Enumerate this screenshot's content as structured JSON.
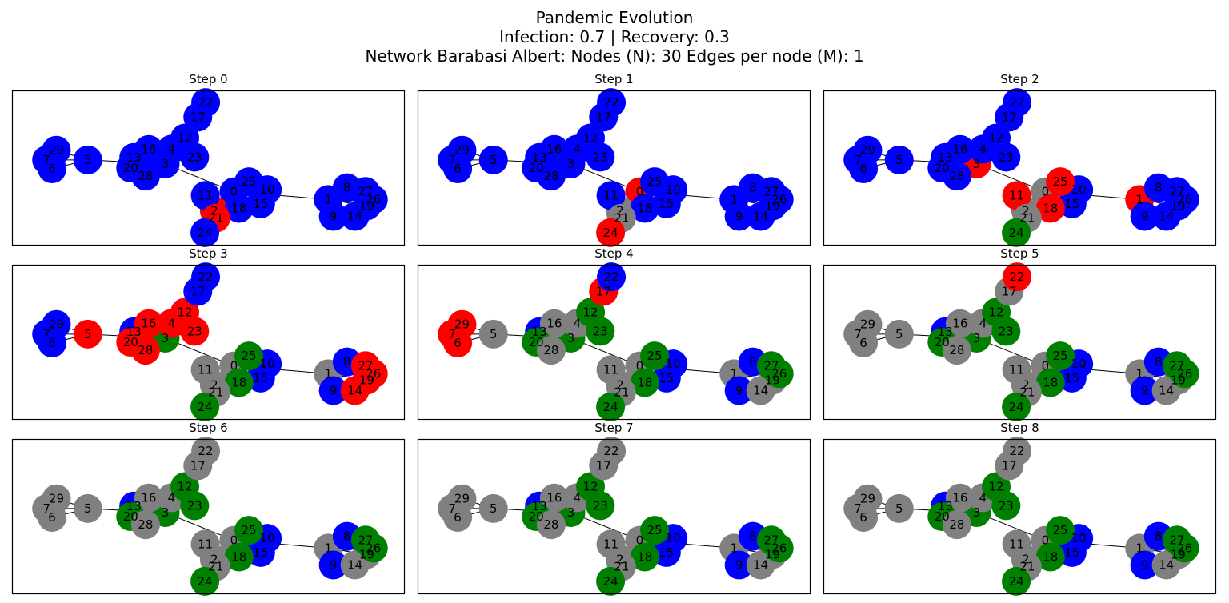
{
  "title_lines": [
    "Pandemic Evolution",
    "Infection: 0.7 | Recovery: 0.3",
    "Network Barabasi Albert: Nodes (N): 30 Edges per node (M): 1"
  ],
  "colors": {
    "susceptible": "#0000ff",
    "infected": "#ff0000",
    "recovered": "#808080",
    "vaccinated": "#008000",
    "edge": "#000000",
    "frame": "#000000"
  },
  "chart_data": {
    "type": "network",
    "nodes": [
      {
        "id": "0",
        "x": 0.565,
        "y": 0.653
      },
      {
        "id": "1",
        "x": 0.805,
        "y": 0.703
      },
      {
        "id": "2",
        "x": 0.515,
        "y": 0.775
      },
      {
        "id": "3",
        "x": 0.39,
        "y": 0.474
      },
      {
        "id": "4",
        "x": 0.406,
        "y": 0.378
      },
      {
        "id": "5",
        "x": 0.193,
        "y": 0.448
      },
      {
        "id": "6",
        "x": 0.102,
        "y": 0.505
      },
      {
        "id": "7",
        "x": 0.088,
        "y": 0.448
      },
      {
        "id": "8",
        "x": 0.853,
        "y": 0.627
      },
      {
        "id": "9",
        "x": 0.818,
        "y": 0.812
      },
      {
        "id": "10",
        "x": 0.65,
        "y": 0.64
      },
      {
        "id": "11",
        "x": 0.492,
        "y": 0.677
      },
      {
        "id": "12",
        "x": 0.44,
        "y": 0.307
      },
      {
        "id": "13",
        "x": 0.31,
        "y": 0.432
      },
      {
        "id": "14",
        "x": 0.873,
        "y": 0.812
      },
      {
        "id": "15",
        "x": 0.633,
        "y": 0.731
      },
      {
        "id": "16",
        "x": 0.348,
        "y": 0.38
      },
      {
        "id": "17",
        "x": 0.473,
        "y": 0.172
      },
      {
        "id": "18",
        "x": 0.578,
        "y": 0.76
      },
      {
        "id": "19",
        "x": 0.903,
        "y": 0.745
      },
      {
        "id": "20",
        "x": 0.302,
        "y": 0.5
      },
      {
        "id": "21",
        "x": 0.519,
        "y": 0.823
      },
      {
        "id": "22",
        "x": 0.493,
        "y": 0.078
      },
      {
        "id": "23",
        "x": 0.465,
        "y": 0.43
      },
      {
        "id": "24",
        "x": 0.491,
        "y": 0.917
      },
      {
        "id": "25",
        "x": 0.603,
        "y": 0.588
      },
      {
        "id": "26",
        "x": 0.92,
        "y": 0.703
      },
      {
        "id": "27",
        "x": 0.9,
        "y": 0.651
      },
      {
        "id": "28",
        "x": 0.34,
        "y": 0.552
      },
      {
        "id": "29",
        "x": 0.113,
        "y": 0.385
      }
    ],
    "edges": [
      [
        "0",
        "1"
      ],
      [
        "0",
        "2"
      ],
      [
        "0",
        "3"
      ],
      [
        "0",
        "10"
      ],
      [
        "0",
        "11"
      ],
      [
        "0",
        "15"
      ],
      [
        "0",
        "18"
      ],
      [
        "0",
        "25"
      ],
      [
        "1",
        "8"
      ],
      [
        "1",
        "9"
      ],
      [
        "1",
        "14"
      ],
      [
        "1",
        "19"
      ],
      [
        "1",
        "26"
      ],
      [
        "1",
        "27"
      ],
      [
        "2",
        "21"
      ],
      [
        "2",
        "24"
      ],
      [
        "3",
        "4"
      ],
      [
        "3",
        "5"
      ],
      [
        "3",
        "12"
      ],
      [
        "3",
        "13"
      ],
      [
        "3",
        "16"
      ],
      [
        "3",
        "20"
      ],
      [
        "3",
        "23"
      ],
      [
        "3",
        "28"
      ],
      [
        "12",
        "17"
      ],
      [
        "17",
        "22"
      ],
      [
        "5",
        "6"
      ],
      [
        "5",
        "7"
      ],
      [
        "5",
        "29"
      ]
    ],
    "steps": [
      {
        "label": "Step 0",
        "status": {
          "0": "S",
          "1": "S",
          "2": "I",
          "3": "S",
          "4": "S",
          "5": "S",
          "6": "S",
          "7": "S",
          "8": "S",
          "9": "S",
          "10": "S",
          "11": "S",
          "12": "S",
          "13": "S",
          "14": "S",
          "15": "S",
          "16": "S",
          "17": "S",
          "18": "S",
          "19": "S",
          "20": "S",
          "21": "I",
          "22": "S",
          "23": "S",
          "24": "S",
          "25": "S",
          "26": "S",
          "27": "S",
          "28": "S",
          "29": "S"
        }
      },
      {
        "label": "Step 1",
        "status": {
          "0": "I",
          "1": "S",
          "2": "R",
          "3": "S",
          "4": "S",
          "5": "S",
          "6": "S",
          "7": "S",
          "8": "S",
          "9": "S",
          "10": "S",
          "11": "S",
          "12": "S",
          "13": "S",
          "14": "S",
          "15": "S",
          "16": "S",
          "17": "S",
          "18": "S",
          "19": "S",
          "20": "S",
          "21": "R",
          "22": "S",
          "23": "S",
          "24": "I",
          "25": "S",
          "26": "S",
          "27": "S",
          "28": "S",
          "29": "S"
        }
      },
      {
        "label": "Step 2",
        "status": {
          "0": "R",
          "1": "I",
          "2": "R",
          "3": "I",
          "4": "S",
          "5": "S",
          "6": "S",
          "7": "S",
          "8": "S",
          "9": "S",
          "10": "S",
          "11": "I",
          "12": "S",
          "13": "S",
          "14": "S",
          "15": "S",
          "16": "S",
          "17": "S",
          "18": "I",
          "19": "S",
          "20": "S",
          "21": "R",
          "22": "S",
          "23": "S",
          "24": "V",
          "25": "I",
          "26": "S",
          "27": "S",
          "28": "S",
          "29": "S"
        }
      },
      {
        "label": "Step 3",
        "status": {
          "0": "R",
          "1": "R",
          "2": "R",
          "3": "V",
          "4": "I",
          "5": "I",
          "6": "S",
          "7": "S",
          "8": "S",
          "9": "S",
          "10": "S",
          "11": "R",
          "12": "I",
          "13": "S",
          "14": "I",
          "15": "S",
          "16": "I",
          "17": "S",
          "18": "V",
          "19": "I",
          "20": "I",
          "21": "R",
          "22": "S",
          "23": "I",
          "24": "V",
          "25": "V",
          "26": "I",
          "27": "I",
          "28": "I",
          "29": "S"
        }
      },
      {
        "label": "Step 4",
        "status": {
          "0": "R",
          "1": "R",
          "2": "R",
          "3": "V",
          "4": "R",
          "5": "R",
          "6": "I",
          "7": "I",
          "8": "S",
          "9": "S",
          "10": "S",
          "11": "R",
          "12": "V",
          "13": "S",
          "14": "R",
          "15": "S",
          "16": "R",
          "17": "I",
          "18": "V",
          "19": "R",
          "20": "V",
          "21": "R",
          "22": "S",
          "23": "V",
          "24": "V",
          "25": "V",
          "26": "V",
          "27": "V",
          "28": "R",
          "29": "I"
        }
      },
      {
        "label": "Step 5",
        "status": {
          "0": "R",
          "1": "R",
          "2": "R",
          "3": "V",
          "4": "R",
          "5": "R",
          "6": "R",
          "7": "R",
          "8": "S",
          "9": "S",
          "10": "S",
          "11": "R",
          "12": "V",
          "13": "S",
          "14": "R",
          "15": "S",
          "16": "R",
          "17": "R",
          "18": "V",
          "19": "R",
          "20": "V",
          "21": "R",
          "22": "I",
          "23": "V",
          "24": "V",
          "25": "V",
          "26": "V",
          "27": "V",
          "28": "R",
          "29": "R"
        }
      },
      {
        "label": "Step 6",
        "status": {
          "0": "R",
          "1": "R",
          "2": "R",
          "3": "V",
          "4": "R",
          "5": "R",
          "6": "R",
          "7": "R",
          "8": "S",
          "9": "S",
          "10": "S",
          "11": "R",
          "12": "V",
          "13": "S",
          "14": "R",
          "15": "S",
          "16": "R",
          "17": "R",
          "18": "V",
          "19": "R",
          "20": "V",
          "21": "R",
          "22": "R",
          "23": "V",
          "24": "V",
          "25": "V",
          "26": "V",
          "27": "V",
          "28": "R",
          "29": "R"
        }
      },
      {
        "label": "Step 7",
        "status": {
          "0": "R",
          "1": "R",
          "2": "R",
          "3": "V",
          "4": "R",
          "5": "R",
          "6": "R",
          "7": "R",
          "8": "S",
          "9": "S",
          "10": "S",
          "11": "R",
          "12": "V",
          "13": "S",
          "14": "R",
          "15": "S",
          "16": "R",
          "17": "R",
          "18": "V",
          "19": "R",
          "20": "V",
          "21": "R",
          "22": "R",
          "23": "V",
          "24": "V",
          "25": "V",
          "26": "V",
          "27": "V",
          "28": "R",
          "29": "R"
        }
      },
      {
        "label": "Step 8",
        "status": {
          "0": "R",
          "1": "R",
          "2": "R",
          "3": "V",
          "4": "R",
          "5": "R",
          "6": "R",
          "7": "R",
          "8": "S",
          "9": "S",
          "10": "S",
          "11": "R",
          "12": "V",
          "13": "S",
          "14": "R",
          "15": "S",
          "16": "R",
          "17": "R",
          "18": "V",
          "19": "R",
          "20": "V",
          "21": "R",
          "22": "R",
          "23": "V",
          "24": "V",
          "25": "V",
          "26": "V",
          "27": "V",
          "28": "R",
          "29": "R"
        }
      }
    ]
  }
}
